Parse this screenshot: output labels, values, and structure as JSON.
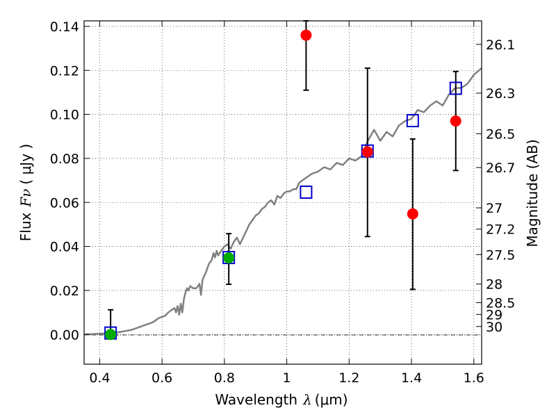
{
  "chart_data": {
    "type": "scatter",
    "title": "",
    "xlabel": "Wavelength",
    "xlabel_symbol": "λ",
    "xlabel_unit": "(μm)",
    "ylabel": "Flux",
    "ylabel_symbol": "Fν",
    "ylabel_unit": "( μJy )",
    "ylabel_right": "Magnitude (AB)",
    "xlim": [
      0.35,
      1.625
    ],
    "ylim": [
      -0.0135,
      0.1425
    ],
    "grid": true,
    "x_ticks": [
      {
        "value": 0.4,
        "label": "0.4"
      },
      {
        "value": 0.6,
        "label": "0.6"
      },
      {
        "value": 0.8,
        "label": "0.8"
      },
      {
        "value": 1.0,
        "label": "1"
      },
      {
        "value": 1.2,
        "label": "1.2"
      },
      {
        "value": 1.4,
        "label": "1.4"
      },
      {
        "value": 1.6,
        "label": "1.6"
      }
    ],
    "y_ticks": [
      {
        "value": 0.0,
        "label": "0.00"
      },
      {
        "value": 0.02,
        "label": "0.02"
      },
      {
        "value": 0.04,
        "label": "0.04"
      },
      {
        "value": 0.06,
        "label": "0.06"
      },
      {
        "value": 0.08,
        "label": "0.08"
      },
      {
        "value": 0.1,
        "label": "0.10"
      },
      {
        "value": 0.12,
        "label": "0.12"
      },
      {
        "value": 0.14,
        "label": "0.14"
      }
    ],
    "mag_ticks": [
      {
        "mag": 26.1,
        "label": "26.1"
      },
      {
        "mag": 26.3,
        "label": "26.3"
      },
      {
        "mag": 26.5,
        "label": "26.5"
      },
      {
        "mag": 26.7,
        "label": "26.7"
      },
      {
        "mag": 27.0,
        "label": "27"
      },
      {
        "mag": 27.2,
        "label": "27.2"
      },
      {
        "mag": 27.5,
        "label": "27.5"
      },
      {
        "mag": 28.0,
        "label": "28"
      },
      {
        "mag": 28.5,
        "label": "28.5"
      },
      {
        "mag": 29.0,
        "label": "29"
      },
      {
        "mag": 30.0,
        "label": "30"
      }
    ],
    "model_spectrum": {
      "color": "#808080",
      "x": [
        0.35,
        0.38,
        0.4,
        0.42,
        0.44,
        0.46,
        0.48,
        0.5,
        0.52,
        0.54,
        0.56,
        0.57,
        0.58,
        0.59,
        0.6,
        0.61,
        0.62,
        0.63,
        0.64,
        0.645,
        0.65,
        0.655,
        0.66,
        0.665,
        0.67,
        0.675,
        0.68,
        0.685,
        0.69,
        0.7,
        0.71,
        0.72,
        0.725,
        0.73,
        0.74,
        0.75,
        0.76,
        0.765,
        0.77,
        0.775,
        0.78,
        0.79,
        0.8,
        0.81,
        0.82,
        0.83,
        0.84,
        0.85,
        0.86,
        0.87,
        0.88,
        0.89,
        0.9,
        0.91,
        0.92,
        0.93,
        0.94,
        0.95,
        0.96,
        0.97,
        0.98,
        0.99,
        1.0,
        1.01,
        1.02,
        1.03,
        1.04,
        1.06,
        1.08,
        1.1,
        1.12,
        1.14,
        1.16,
        1.18,
        1.2,
        1.22,
        1.24,
        1.26,
        1.28,
        1.3,
        1.32,
        1.34,
        1.36,
        1.38,
        1.4,
        1.42,
        1.44,
        1.46,
        1.48,
        1.5,
        1.52,
        1.54,
        1.56,
        1.58,
        1.6,
        1.625
      ],
      "y": [
        0.0,
        0.0002,
        0.0003,
        0.0005,
        0.0006,
        0.001,
        0.0015,
        0.002,
        0.003,
        0.004,
        0.005,
        0.0055,
        0.0065,
        0.0075,
        0.008,
        0.0085,
        0.01,
        0.011,
        0.012,
        0.01,
        0.013,
        0.009,
        0.014,
        0.01,
        0.016,
        0.019,
        0.021,
        0.02,
        0.022,
        0.021,
        0.021,
        0.023,
        0.018,
        0.025,
        0.028,
        0.032,
        0.034,
        0.037,
        0.035,
        0.038,
        0.036,
        0.038,
        0.04,
        0.041,
        0.039,
        0.042,
        0.044,
        0.041,
        0.044,
        0.047,
        0.05,
        0.052,
        0.054,
        0.055,
        0.057,
        0.058,
        0.06,
        0.061,
        0.059,
        0.063,
        0.062,
        0.064,
        0.065,
        0.065,
        0.066,
        0.066,
        0.069,
        0.071,
        0.073,
        0.074,
        0.076,
        0.075,
        0.078,
        0.077,
        0.08,
        0.079,
        0.081,
        0.088,
        0.093,
        0.088,
        0.092,
        0.09,
        0.095,
        0.097,
        0.098,
        0.102,
        0.101,
        0.104,
        0.106,
        0.104,
        0.109,
        0.112,
        0.112,
        0.114,
        0.118,
        0.121
      ]
    },
    "series": [
      {
        "marker": "square-open",
        "color": "#0000cc",
        "x": [
          0.435,
          0.814,
          1.062,
          1.259,
          1.404,
          1.542
        ],
        "y": [
          0.0005,
          0.0348,
          0.0645,
          0.0832,
          0.097,
          0.1117
        ]
      },
      {
        "marker": "circle",
        "color": "#ff0000",
        "x": [
          1.062,
          1.259,
          1.404,
          1.542
        ],
        "y": [
          0.136,
          0.083,
          0.0548,
          0.097
        ],
        "yerr_low": [
          0.111,
          0.0445,
          0.0205,
          0.0745
        ],
        "yerr_high": [
          0.1425,
          0.121,
          0.0888,
          0.1195
        ]
      },
      {
        "marker": "circle",
        "color": "#00aa00",
        "x": [
          0.435,
          0.814
        ],
        "y": [
          0.0,
          0.0348
        ],
        "yerr_low": [
          0.0,
          0.0228
        ],
        "yerr_high": [
          0.0112,
          0.0458
        ]
      }
    ]
  }
}
